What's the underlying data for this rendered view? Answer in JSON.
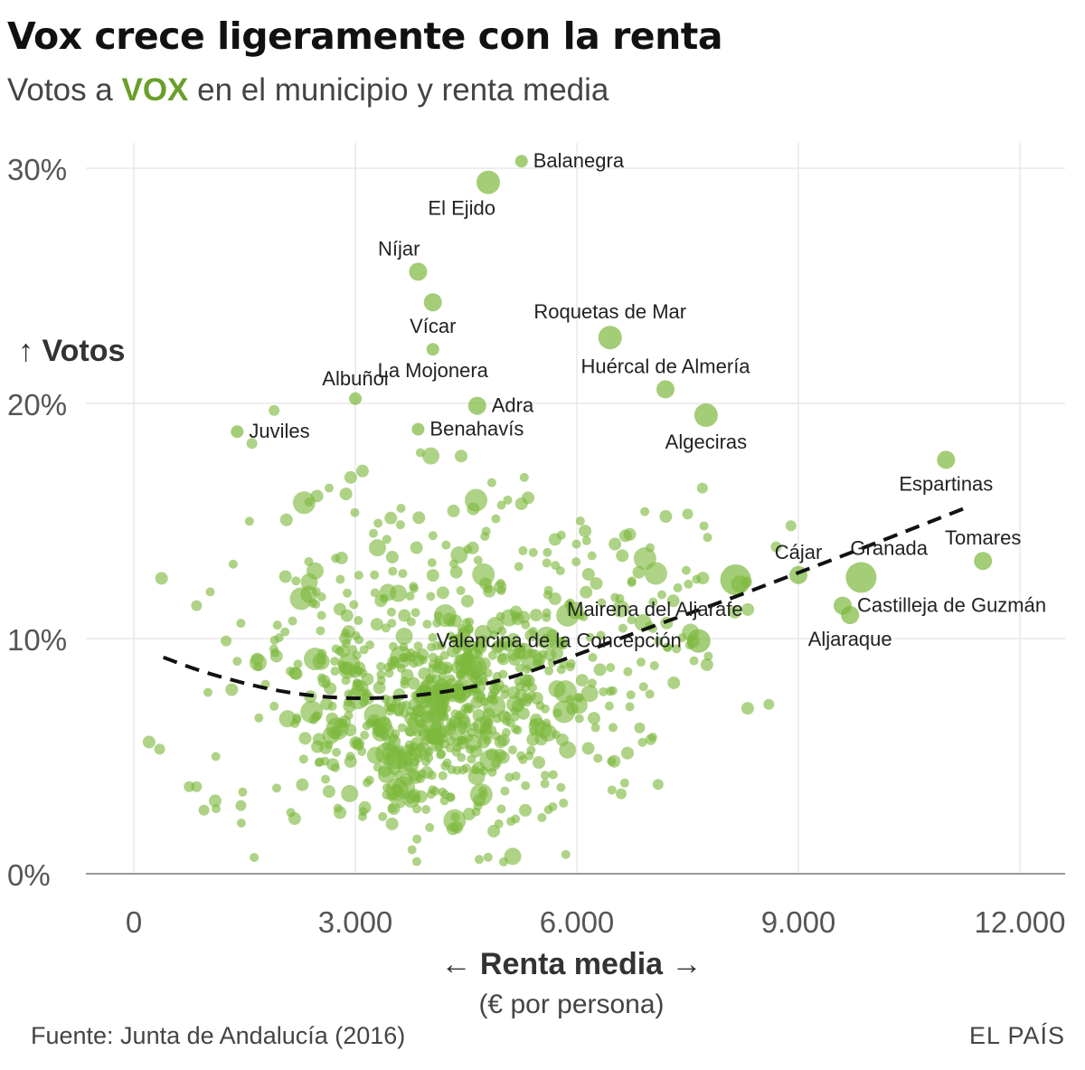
{
  "header": {
    "title": "Vox crece ligeramente con la renta",
    "subtitle_before": "Votos a ",
    "subtitle_highlight": "VOX",
    "subtitle_after": " en el municipio y renta media"
  },
  "footer": {
    "source": "Fuente: Junta de Andalucía (2016)",
    "brand": "EL PAÍS"
  },
  "colors": {
    "point": "#7cb83c",
    "highlight": "#6a9f2a",
    "trend": "#111111",
    "grid": "#e8e8e8",
    "axis": "#999999"
  },
  "chart_data": {
    "type": "scatter",
    "title": "Vox crece ligeramente con la renta",
    "subtitle": "Votos a VOX en el municipio y renta media",
    "ylabel": "↑ Votos",
    "xlabel": "← Renta media →",
    "xlabel_sub": "(€ por persona)",
    "xlim": [
      -500,
      12500
    ],
    "ylim": [
      0,
      30
    ],
    "x_ticks": [
      0,
      3000,
      6000,
      9000,
      12000
    ],
    "x_tick_labels": [
      "0",
      "3.000",
      "6.000",
      "9.000",
      "12.000"
    ],
    "y_ticks": [
      0,
      10,
      20,
      30
    ],
    "y_tick_labels": [
      "0%",
      "10%",
      "20%",
      "30%"
    ],
    "grid": true,
    "size_encoding": "population",
    "labeled_points": [
      {
        "name": "Balanegra",
        "x": 5250,
        "y": 30.3,
        "size": 1,
        "label_pos": "right"
      },
      {
        "name": "El Ejido",
        "x": 4800,
        "y": 29.4,
        "size": 3,
        "label_pos": "below-left"
      },
      {
        "name": "Níjar",
        "x": 3850,
        "y": 25.6,
        "size": 2,
        "label_pos": "above-left"
      },
      {
        "name": "Vícar",
        "x": 4050,
        "y": 24.3,
        "size": 2,
        "label_pos": "below"
      },
      {
        "name": "Roquetas de Mar",
        "x": 6450,
        "y": 22.8,
        "size": 3,
        "label_pos": "above"
      },
      {
        "name": "La Mojonera",
        "x": 4050,
        "y": 22.3,
        "size": 1,
        "label_pos": "below"
      },
      {
        "name": "Huércal de Almería",
        "x": 7200,
        "y": 20.6,
        "size": 2,
        "label_pos": "above"
      },
      {
        "name": "Albuñol",
        "x": 3000,
        "y": 20.2,
        "size": 1,
        "label_pos": "above"
      },
      {
        "name": "Adra",
        "x": 4650,
        "y": 19.9,
        "size": 2,
        "label_pos": "right"
      },
      {
        "name": "Algeciras",
        "x": 7750,
        "y": 19.5,
        "size": 3,
        "label_pos": "below"
      },
      {
        "name": "Juviles",
        "x": 1400,
        "y": 18.8,
        "size": 1,
        "label_pos": "right"
      },
      {
        "name": "Benahavís",
        "x": 3850,
        "y": 18.9,
        "size": 1,
        "label_pos": "right"
      },
      {
        "name": "Espartinas",
        "x": 11000,
        "y": 17.6,
        "size": 2,
        "label_pos": "below"
      },
      {
        "name": "Tomares",
        "x": 11500,
        "y": 13.3,
        "size": 2,
        "label_pos": "above"
      },
      {
        "name": "Cájar",
        "x": 9000,
        "y": 12.7,
        "size": 2,
        "label_pos": "above"
      },
      {
        "name": "Granada",
        "x": 9850,
        "y": 12.6,
        "size": 4,
        "label_pos": "above-right"
      },
      {
        "name": "Mairena del Aljarafe",
        "x": 8150,
        "y": 12.5,
        "size": 4,
        "label_pos": "below-left"
      },
      {
        "name": "Castilleja de Guzmán",
        "x": 9600,
        "y": 11.4,
        "size": 2,
        "label_pos": "right"
      },
      {
        "name": "Aljaraque",
        "x": 9700,
        "y": 11.0,
        "size": 2,
        "label_pos": "below"
      },
      {
        "name": "Valencina de la Concepción",
        "x": 7650,
        "y": 9.9,
        "size": 3,
        "label_pos": "left"
      }
    ],
    "trend": {
      "name": "",
      "style": "dashed",
      "x": [
        400,
        1000,
        2000,
        3000,
        4000,
        5000,
        6000,
        7000,
        8000,
        9000,
        10000,
        11300
      ],
      "y": [
        9.2,
        8.5,
        7.7,
        7.4,
        7.6,
        8.2,
        9.3,
        10.5,
        11.6,
        12.8,
        14.0,
        15.6
      ]
    },
    "clouds": [
      {
        "cx": 4200,
        "cy": 7.0,
        "sx": 900,
        "sy": 2.5,
        "n": 560
      },
      {
        "cx": 2700,
        "cy": 8.5,
        "sx": 900,
        "sy": 3.3,
        "n": 110
      },
      {
        "cx": 5800,
        "cy": 9.5,
        "sx": 900,
        "sy": 3.0,
        "n": 120
      },
      {
        "cx": 7200,
        "cy": 11.0,
        "sx": 700,
        "sy": 2.5,
        "n": 35
      },
      {
        "cx": 3500,
        "cy": 15.5,
        "sx": 900,
        "sy": 1.5,
        "n": 40
      }
    ],
    "extra_points": [
      {
        "x": 350,
        "y": 5.3
      },
      {
        "x": 750,
        "y": 3.7
      },
      {
        "x": 850,
        "y": 3.7
      },
      {
        "x": 950,
        "y": 2.7
      },
      {
        "x": 850,
        "y": 11.4
      },
      {
        "x": 1250,
        "y": 9.9
      },
      {
        "x": 1450,
        "y": 2.9
      },
      {
        "x": 1900,
        "y": 19.7
      },
      {
        "x": 1600,
        "y": 18.3
      },
      {
        "x": 8600,
        "y": 7.2
      },
      {
        "x": 8300,
        "y": 12.4
      },
      {
        "x": 8900,
        "y": 14.8
      },
      {
        "x": 8700,
        "y": 13.9
      },
      {
        "x": 7700,
        "y": 16.4
      },
      {
        "x": 7500,
        "y": 15.3
      },
      {
        "x": 7100,
        "y": 3.8
      },
      {
        "x": 7000,
        "y": 5.7
      },
      {
        "x": 6850,
        "y": 6.2
      },
      {
        "x": 6600,
        "y": 3.4
      }
    ]
  }
}
